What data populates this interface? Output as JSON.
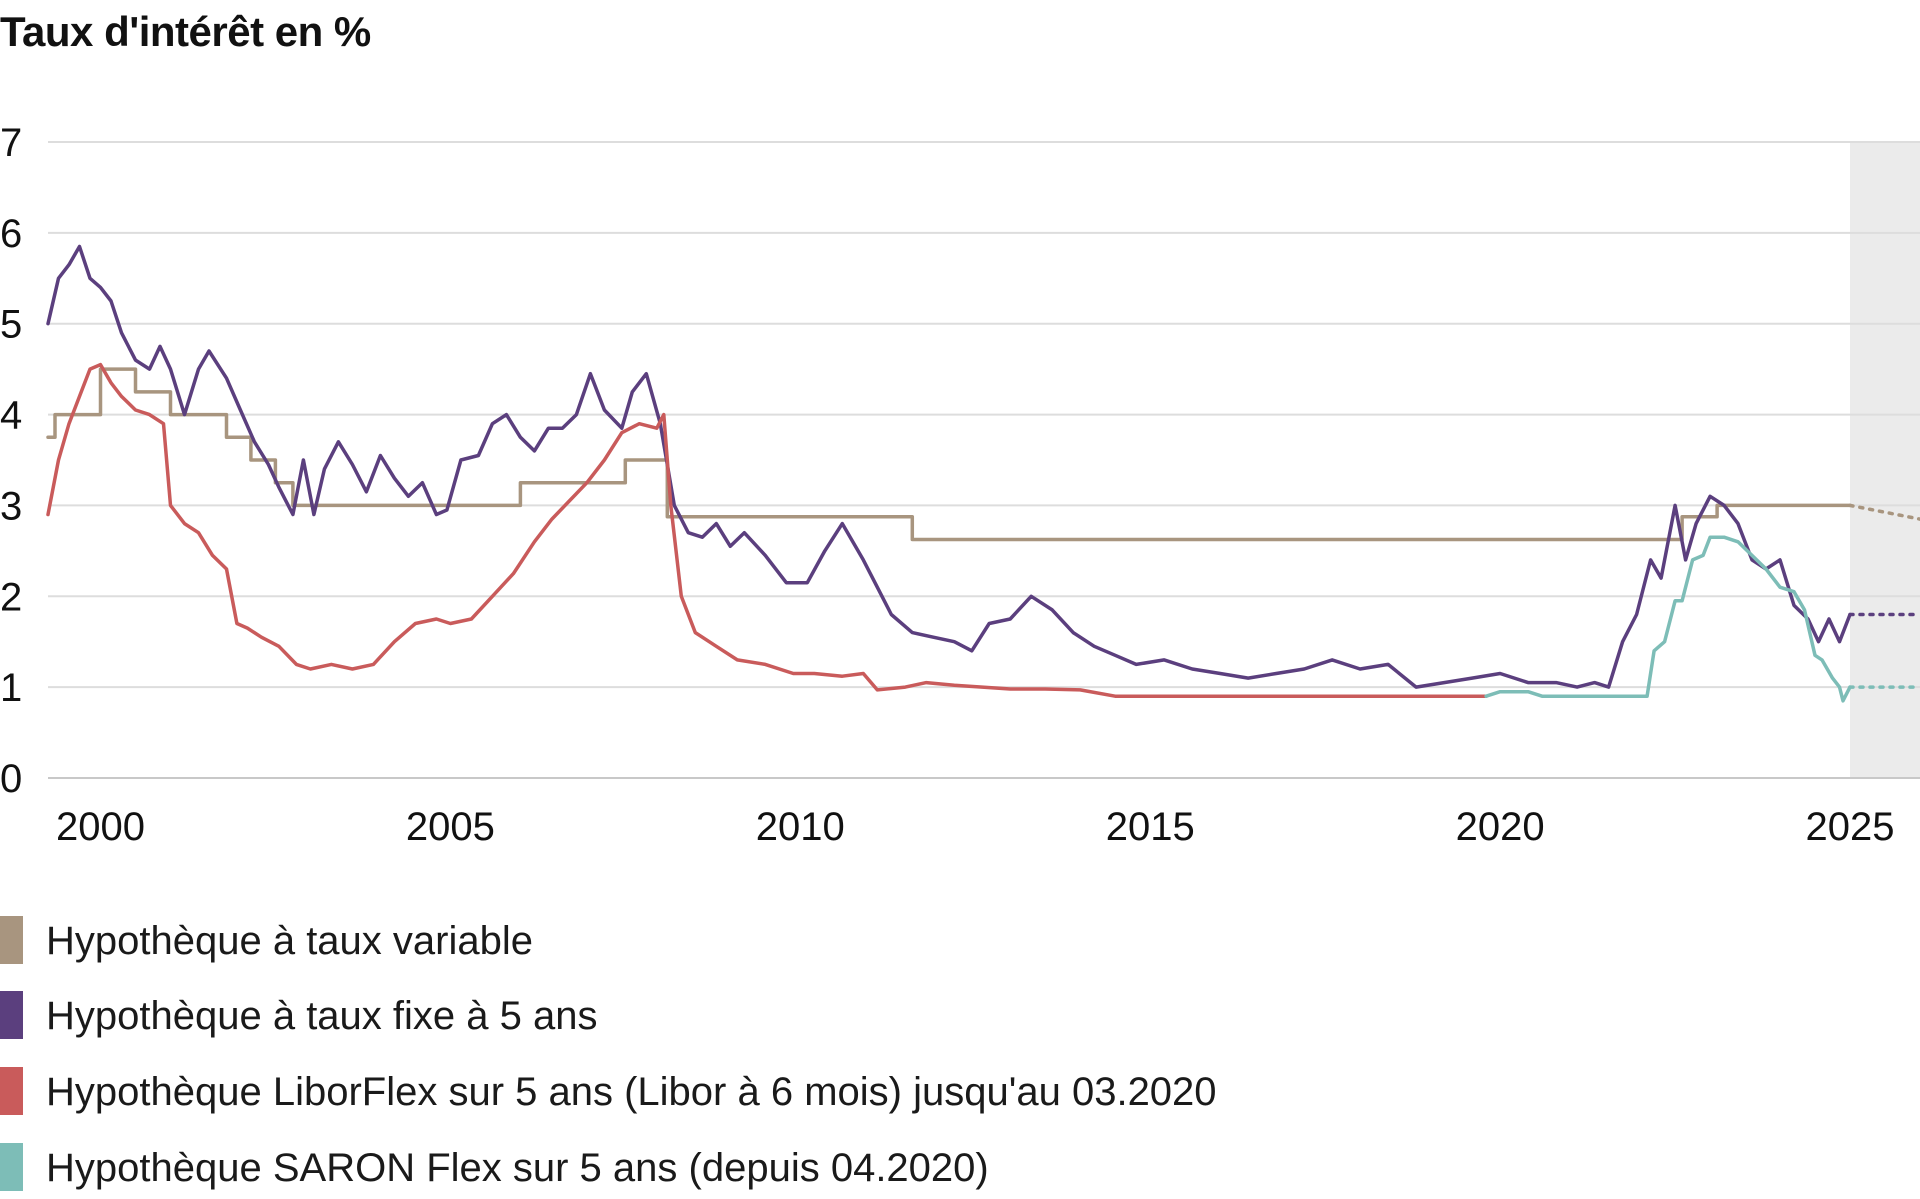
{
  "chart_data": {
    "type": "line",
    "title": "Taux d'intérêt en %",
    "xlabel": "",
    "ylabel": "",
    "xlim": [
      1999.25,
      2026.0
    ],
    "ylim": [
      0,
      7
    ],
    "grid": true,
    "forecast_from": 2025.0,
    "x_ticks": [
      2000,
      2005,
      2010,
      2015,
      2020,
      2025
    ],
    "y_ticks": [
      0,
      1,
      2,
      3,
      4,
      5,
      6,
      7
    ],
    "legend_position": "bottom",
    "series": [
      {
        "name": "Hypothèque à taux variable",
        "color": "#a8957f",
        "x": [
          1999.25,
          1999.35,
          1999.35,
          1999.58,
          1999.58,
          2000.0,
          2000.0,
          2000.5,
          2000.5,
          2001.0,
          2001.0,
          2001.8,
          2001.8,
          2002.15,
          2002.15,
          2002.5,
          2002.5,
          2002.75,
          2002.75,
          2003.0,
          2003.0,
          2006.0,
          2006.0,
          2007.5,
          2007.5,
          2008.1,
          2008.1,
          2011.6,
          2011.6,
          2022.6,
          2022.6,
          2023.1,
          2023.1,
          2025.0
        ],
        "y": [
          3.75,
          3.75,
          4.0,
          4.0,
          4.0,
          4.0,
          4.5,
          4.5,
          4.25,
          4.25,
          4.0,
          4.0,
          3.75,
          3.75,
          3.5,
          3.5,
          3.25,
          3.25,
          3.0,
          3.0,
          3.0,
          3.0,
          3.25,
          3.25,
          3.5,
          3.5,
          2.875,
          2.875,
          2.625,
          2.625,
          2.875,
          2.875,
          3.0,
          3.0
        ]
      },
      {
        "name": "Hypothèque à taux fixe à 5 ans",
        "color": "#5b3f7e",
        "x": [
          1999.25,
          1999.4,
          1999.55,
          1999.7,
          1999.85,
          2000.0,
          2000.15,
          2000.3,
          2000.5,
          2000.7,
          2000.85,
          2001.0,
          2001.2,
          2001.4,
          2001.55,
          2001.8,
          2002.0,
          2002.2,
          2002.4,
          2002.55,
          2002.75,
          2002.9,
          2003.05,
          2003.2,
          2003.4,
          2003.6,
          2003.8,
          2004.0,
          2004.2,
          2004.4,
          2004.6,
          2004.8,
          2004.95,
          2005.15,
          2005.4,
          2005.6,
          2005.8,
          2006.0,
          2006.2,
          2006.4,
          2006.6,
          2006.8,
          2007.0,
          2007.2,
          2007.45,
          2007.6,
          2007.8,
          2008.0,
          2008.2,
          2008.4,
          2008.6,
          2008.8,
          2009.0,
          2009.2,
          2009.5,
          2009.8,
          2010.1,
          2010.35,
          2010.6,
          2010.9,
          2011.1,
          2011.3,
          2011.6,
          2011.9,
          2012.2,
          2012.45,
          2012.7,
          2013.0,
          2013.3,
          2013.6,
          2013.9,
          2014.2,
          2014.5,
          2014.8,
          2015.2,
          2015.6,
          2016.0,
          2016.4,
          2016.8,
          2017.2,
          2017.6,
          2018.0,
          2018.4,
          2018.8,
          2019.2,
          2019.6,
          2020.0,
          2020.4,
          2020.8,
          2021.1,
          2021.35,
          2021.55,
          2021.75,
          2021.95,
          2022.15,
          2022.3,
          2022.5,
          2022.65,
          2022.8,
          2023.0,
          2023.2,
          2023.4,
          2023.6,
          2023.8,
          2024.0,
          2024.2,
          2024.4,
          2024.55,
          2024.7,
          2024.85,
          2025.0
        ],
        "y": [
          5.0,
          5.5,
          5.65,
          5.85,
          5.5,
          5.4,
          5.25,
          4.9,
          4.6,
          4.5,
          4.75,
          4.5,
          4.0,
          4.5,
          4.7,
          4.4,
          4.05,
          3.7,
          3.45,
          3.2,
          2.9,
          3.5,
          2.9,
          3.4,
          3.7,
          3.45,
          3.15,
          3.55,
          3.3,
          3.1,
          3.25,
          2.9,
          2.95,
          3.5,
          3.55,
          3.9,
          4.0,
          3.75,
          3.6,
          3.85,
          3.85,
          4.0,
          4.45,
          4.05,
          3.85,
          4.25,
          4.45,
          3.9,
          3.0,
          2.7,
          2.65,
          2.8,
          2.55,
          2.7,
          2.45,
          2.15,
          2.15,
          2.5,
          2.8,
          2.4,
          2.1,
          1.8,
          1.6,
          1.55,
          1.5,
          1.4,
          1.7,
          1.75,
          2.0,
          1.85,
          1.6,
          1.45,
          1.35,
          1.25,
          1.3,
          1.2,
          1.15,
          1.1,
          1.15,
          1.2,
          1.3,
          1.2,
          1.25,
          1.0,
          1.05,
          1.1,
          1.15,
          1.05,
          1.05,
          1.0,
          1.05,
          1.0,
          1.5,
          1.8,
          2.4,
          2.2,
          3.0,
          2.4,
          2.8,
          3.1,
          3.0,
          2.8,
          2.4,
          2.3,
          2.4,
          1.9,
          1.75,
          1.5,
          1.75,
          1.5,
          1.8
        ]
      },
      {
        "name": "Hypothèque LiborFlex sur 5 ans (Libor à 6 mois) jusqu'au 03.2020",
        "color": "#c95b5b",
        "x": [
          1999.25,
          1999.4,
          1999.55,
          1999.7,
          1999.85,
          2000.0,
          2000.15,
          2000.3,
          2000.5,
          2000.7,
          2000.9,
          2001.0,
          2001.2,
          2001.4,
          2001.6,
          2001.8,
          2001.95,
          2002.1,
          2002.3,
          2002.55,
          2002.8,
          2003.0,
          2003.3,
          2003.6,
          2003.9,
          2004.2,
          2004.5,
          2004.8,
          2005.0,
          2005.3,
          2005.6,
          2005.9,
          2006.2,
          2006.45,
          2006.7,
          2006.95,
          2007.2,
          2007.45,
          2007.7,
          2007.95,
          2008.05,
          2008.15,
          2008.3,
          2008.5,
          2008.8,
          2009.1,
          2009.5,
          2009.9,
          2010.2,
          2010.6,
          2010.9,
          2011.1,
          2011.5,
          2011.8,
          2012.2,
          2012.6,
          2013.0,
          2013.5,
          2014.0,
          2014.5,
          2015.0,
          2016.0,
          2017.0,
          2018.0,
          2019.0,
          2019.8
        ],
        "y": [
          2.9,
          3.5,
          3.9,
          4.2,
          4.5,
          4.55,
          4.35,
          4.2,
          4.05,
          4.0,
          3.9,
          3.0,
          2.8,
          2.7,
          2.45,
          2.3,
          1.7,
          1.65,
          1.55,
          1.45,
          1.25,
          1.2,
          1.25,
          1.2,
          1.25,
          1.5,
          1.7,
          1.75,
          1.7,
          1.75,
          2.0,
          2.25,
          2.6,
          2.85,
          3.05,
          3.25,
          3.5,
          3.8,
          3.9,
          3.85,
          4.0,
          3.0,
          2.0,
          1.6,
          1.45,
          1.3,
          1.25,
          1.15,
          1.15,
          1.12,
          1.15,
          0.97,
          1.0,
          1.05,
          1.02,
          1.0,
          0.98,
          0.98,
          0.97,
          0.9,
          0.9,
          0.9,
          0.9,
          0.9,
          0.9,
          0.9
        ]
      },
      {
        "name": "Hypothèque SARON Flex sur 5 ans (depuis 04.2020)",
        "color": "#7dbdb7",
        "x": [
          2019.8,
          2020.0,
          2020.2,
          2020.4,
          2020.6,
          2020.9,
          2021.5,
          2021.9,
          2022.1,
          2022.2,
          2022.35,
          2022.5,
          2022.6,
          2022.75,
          2022.9,
          2023.0,
          2023.2,
          2023.4,
          2023.6,
          2023.8,
          2024.0,
          2024.2,
          2024.35,
          2024.5,
          2024.6,
          2024.75,
          2024.85,
          2024.9,
          2025.0
        ],
        "y": [
          0.9,
          0.95,
          0.95,
          0.95,
          0.9,
          0.9,
          0.9,
          0.9,
          0.9,
          1.4,
          1.5,
          1.95,
          1.95,
          2.4,
          2.45,
          2.65,
          2.65,
          2.6,
          2.45,
          2.3,
          2.1,
          2.05,
          1.85,
          1.35,
          1.3,
          1.1,
          1.0,
          0.85,
          1.0
        ]
      }
    ],
    "forecast": [
      {
        "name": "Hypothèque à taux variable",
        "color": "#a8957f",
        "x": [
          2025.0,
          2026.0
        ],
        "y": [
          3.0,
          2.85
        ]
      },
      {
        "name": "Hypothèque à taux fixe à 5 ans",
        "color": "#5b3f7e",
        "x": [
          2025.0,
          2026.0
        ],
        "y": [
          1.8,
          1.8
        ]
      },
      {
        "name": "Hypothèque SARON Flex sur 5 ans (depuis 04.2020)",
        "color": "#7dbdb7",
        "x": [
          2025.0,
          2026.0
        ],
        "y": [
          1.0,
          1.0
        ]
      }
    ]
  },
  "legend": {
    "items": [
      {
        "label": "Hypothèque à taux variable",
        "color": "#a8957f"
      },
      {
        "label": "Hypothèque à taux fixe à 5 ans",
        "color": "#5b3f7e"
      },
      {
        "label": "Hypothèque LiborFlex sur 5 ans (Libor à 6 mois) jusqu'au 03.2020",
        "color": "#c95b5b"
      },
      {
        "label": "Hypothèque SARON Flex sur 5 ans (depuis 04.2020)",
        "color": "#7dbdb7"
      }
    ]
  }
}
